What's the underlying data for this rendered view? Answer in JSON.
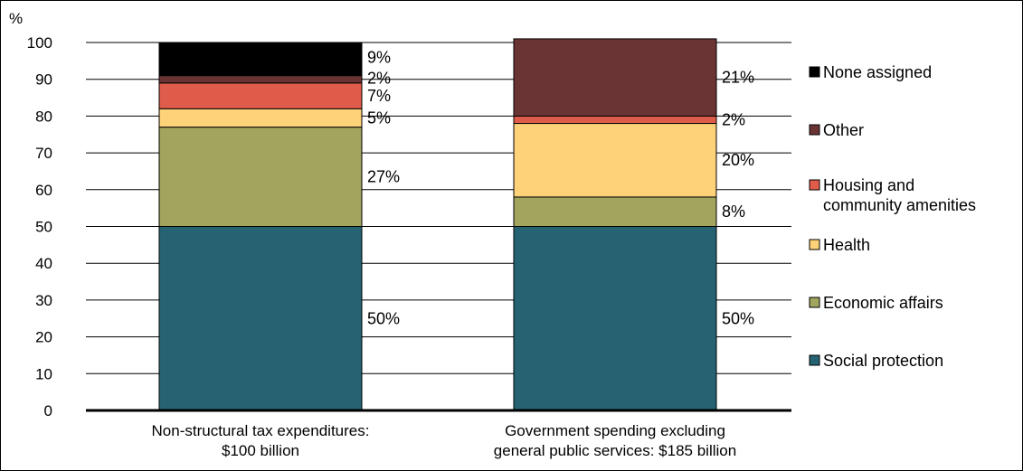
{
  "chart_data": {
    "type": "bar",
    "stacked": true,
    "y_unit_label": "%",
    "ylim": [
      0,
      100
    ],
    "yticks": [
      0,
      10,
      20,
      30,
      40,
      50,
      60,
      70,
      80,
      90,
      100
    ],
    "grid": true,
    "legend_position": "right",
    "categories": [
      [
        "Non-structural tax expenditures:",
        "$100 billion"
      ],
      [
        "Government spending excluding",
        "general public services: $185 billion"
      ]
    ],
    "series": [
      {
        "name": "Social protection",
        "color": "#256373",
        "values": [
          50,
          50
        ],
        "labels": [
          "50%",
          "50%"
        ]
      },
      {
        "name": "Economic affairs",
        "color": "#a1a55e",
        "values": [
          27,
          8
        ],
        "labels": [
          "27%",
          "8%"
        ]
      },
      {
        "name": "Health",
        "color": "#fed279",
        "values": [
          5,
          20
        ],
        "labels": [
          "5%",
          "20%"
        ]
      },
      {
        "name": "Housing and community amenities",
        "color": "#e05c4a",
        "values": [
          7,
          2
        ],
        "labels": [
          "7%",
          "2%"
        ]
      },
      {
        "name": "Other",
        "color": "#6b3434",
        "values": [
          2,
          21
        ],
        "labels": [
          "2%",
          "21%"
        ]
      },
      {
        "name": "None assigned",
        "color": "#000000",
        "values": [
          9,
          0
        ],
        "labels": [
          "9%",
          ""
        ]
      }
    ],
    "legend": [
      {
        "name": "None assigned",
        "lines": [
          "None assigned"
        ],
        "color": "#000000"
      },
      {
        "name": "Other",
        "lines": [
          "Other"
        ],
        "color": "#6b3434"
      },
      {
        "name": "Housing and community amenities",
        "lines": [
          "Housing and",
          "community amenities"
        ],
        "color": "#e05c4a"
      },
      {
        "name": "Health",
        "lines": [
          "Health"
        ],
        "color": "#fed279"
      },
      {
        "name": "Economic affairs",
        "lines": [
          "Economic affairs"
        ],
        "color": "#a1a55e"
      },
      {
        "name": "Social protection",
        "lines": [
          "Social protection"
        ],
        "color": "#256373"
      }
    ]
  }
}
